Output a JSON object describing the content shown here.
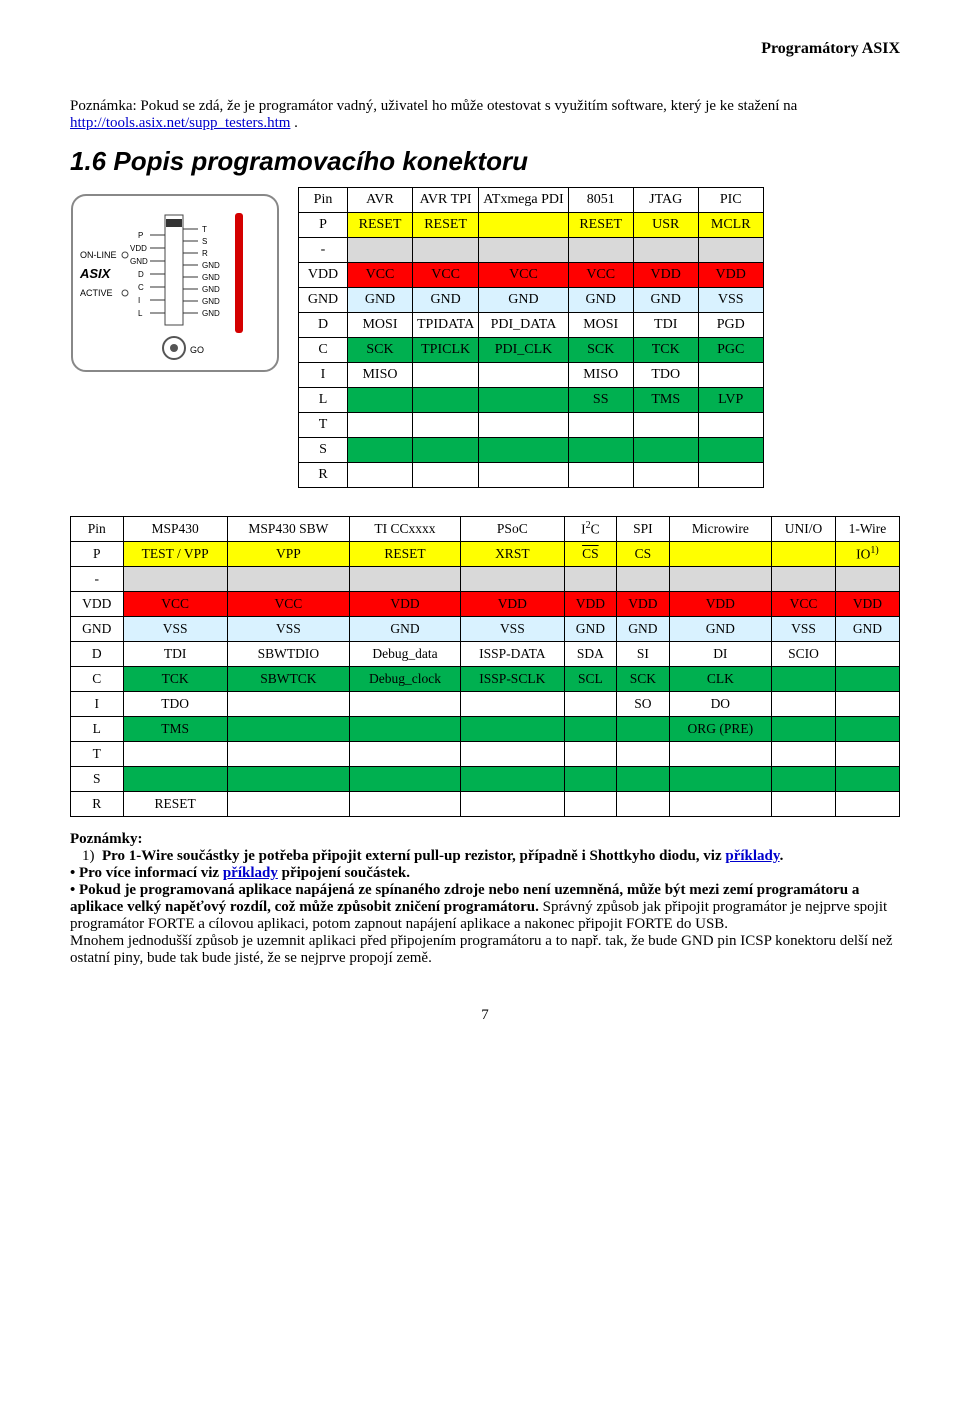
{
  "header_right": "Programátory ASIX",
  "note": {
    "prefix": "Poznámka: Pokud se zdá, že je programátor vadný, uživatel ho může otestovat s využitím software, který je ke stažení na ",
    "link": "http://tools.asix.net/supp_testers.htm",
    "suffix": " ."
  },
  "heading": "1.6 Popis programovacího konektoru",
  "diagram": {
    "labels_left": [
      "ON-LINE",
      "ASIX",
      "ACTIVE"
    ],
    "pins_left": [
      "P",
      "VDD",
      "GND",
      "D",
      "C",
      "I",
      "L"
    ],
    "pins_right": [
      "T",
      "S",
      "R",
      "GND",
      "GND",
      "GND",
      "GND",
      "GND"
    ],
    "go": "GO"
  },
  "colors": {
    "yellow": "#ffff00",
    "grey": "#d9d9d9",
    "red": "#ff0000",
    "lightblue": "#d9f2ff",
    "white": "#ffffff",
    "green": "#00b050"
  },
  "t1_headers": [
    "Pin",
    "AVR",
    "AVR TPI",
    "ATxmega PDI",
    "8051",
    "JTAG",
    "PIC"
  ],
  "t1_rows": [
    {
      "pin": "P",
      "cells": [
        "RESET",
        "RESET",
        "",
        "RESET",
        "USR",
        "MCLR"
      ],
      "bg": "yellow"
    },
    {
      "pin": "-",
      "cells": [
        "",
        "",
        "",
        "",
        "",
        ""
      ],
      "bg": "grey"
    },
    {
      "pin": "VDD",
      "cells": [
        "VCC",
        "VCC",
        "VCC",
        "VCC",
        "VDD",
        "VDD"
      ],
      "bg": "red"
    },
    {
      "pin": "GND",
      "cells": [
        "GND",
        "GND",
        "GND",
        "GND",
        "GND",
        "VSS"
      ],
      "bg": "lightblue"
    },
    {
      "pin": "D",
      "cells": [
        "MOSI",
        "TPIDATA",
        "PDI_DATA",
        "MOSI",
        "TDI",
        "PGD"
      ],
      "bg": "white"
    },
    {
      "pin": "C",
      "cells": [
        "SCK",
        "TPICLK",
        "PDI_CLK",
        "SCK",
        "TCK",
        "PGC"
      ],
      "bg": "green"
    },
    {
      "pin": "I",
      "cells": [
        "MISO",
        "",
        "",
        "MISO",
        "TDO",
        ""
      ],
      "bg": "white"
    },
    {
      "pin": "L",
      "cells": [
        "",
        "",
        "",
        "SS",
        "TMS",
        "LVP"
      ],
      "bg": "green"
    },
    {
      "pin": "T",
      "cells": [
        "",
        "",
        "",
        "",
        "",
        ""
      ],
      "bg": "white"
    },
    {
      "pin": "S",
      "cells": [
        "",
        "",
        "",
        "",
        "",
        ""
      ],
      "bg": "green"
    },
    {
      "pin": "R",
      "cells": [
        "",
        "",
        "",
        "",
        "",
        ""
      ],
      "bg": "white"
    }
  ],
  "t2_headers": [
    "Pin",
    "MSP430",
    "MSP430 SBW",
    "TI CCxxxx",
    "PSoC",
    "I²C",
    "SPI",
    "Microwire",
    "UNI/O",
    "1-Wire"
  ],
  "t2_header_i2c_html": "I<sup>2</sup>C",
  "t2_rows": [
    {
      "pin": "P",
      "cells": [
        "TEST / VPP",
        "VPP",
        "RESET",
        "XRST",
        "CS_OVER",
        "CS",
        "",
        "",
        "IO_1"
      ],
      "bg": "yellow"
    },
    {
      "pin": "-",
      "cells": [
        "",
        "",
        "",
        "",
        "",
        "",
        "",
        "",
        ""
      ],
      "bg": "grey"
    },
    {
      "pin": "VDD",
      "cells": [
        "VCC",
        "VCC",
        "VDD",
        "VDD",
        "VDD",
        "VDD",
        "VDD",
        "VCC",
        "VDD"
      ],
      "bg": "red"
    },
    {
      "pin": "GND",
      "cells": [
        "VSS",
        "VSS",
        "GND",
        "VSS",
        "GND",
        "GND",
        "GND",
        "VSS",
        "GND"
      ],
      "bg": "lightblue"
    },
    {
      "pin": "D",
      "cells": [
        "TDI",
        "SBWTDIO",
        "Debug_data",
        "ISSP-DATA",
        "SDA",
        "SI",
        "DI",
        "SCIO",
        ""
      ],
      "bg": "white"
    },
    {
      "pin": "C",
      "cells": [
        "TCK",
        "SBWTCK",
        "Debug_clock",
        "ISSP-SCLK",
        "SCL",
        "SCK",
        "CLK",
        "",
        ""
      ],
      "bg": "green"
    },
    {
      "pin": "I",
      "cells": [
        "TDO",
        "",
        "",
        "",
        "",
        "SO",
        "DO",
        "",
        ""
      ],
      "bg": "white"
    },
    {
      "pin": "L",
      "cells": [
        "TMS",
        "",
        "",
        "",
        "",
        "",
        "ORG (PRE)",
        "",
        ""
      ],
      "bg": "green"
    },
    {
      "pin": "T",
      "cells": [
        "",
        "",
        "",
        "",
        "",
        "",
        "",
        "",
        ""
      ],
      "bg": "white"
    },
    {
      "pin": "S",
      "cells": [
        "",
        "",
        "",
        "",
        "",
        "",
        "",
        "",
        ""
      ],
      "bg": "green"
    },
    {
      "pin": "R",
      "cells": [
        "RESET",
        "",
        "",
        "",
        "",
        "",
        "",
        "",
        ""
      ],
      "bg": "white"
    }
  ],
  "footer": {
    "title": "Poznámky:",
    "item1_a": "Pro 1-Wire součástky je potřeba připojit externí pull-up rezistor, případně i Shottkyho diodu, viz ",
    "item1_link": "příklady",
    "item1_b": ".",
    "bullet1_a": "• Pro více informací viz ",
    "bullet1_link": "příklady",
    "bullet1_b": " připojení součástek.",
    "para2_bold": "• Pokud je programovaná aplikace napájená ze spínaného zdroje nebo není uzemněná, může být mezi zemí programátoru a aplikace velký napěťový rozdíl, což může způsobit zničení programátoru.",
    "para2_rest": " Správný způsob jak připojit programátor je nejprve spojit programátor FORTE a cílovou aplikaci, potom zapnout napájení aplikace a nakonec připojit FORTE do USB.",
    "para3": "Mnohem jednodušší způsob je uzemnit aplikaci před připojením programátoru a to např. tak, že bude GND pin ICSP konektoru delší než ostatní piny, bude tak bude jisté, že se nejprve propojí země."
  },
  "page_number": "7"
}
